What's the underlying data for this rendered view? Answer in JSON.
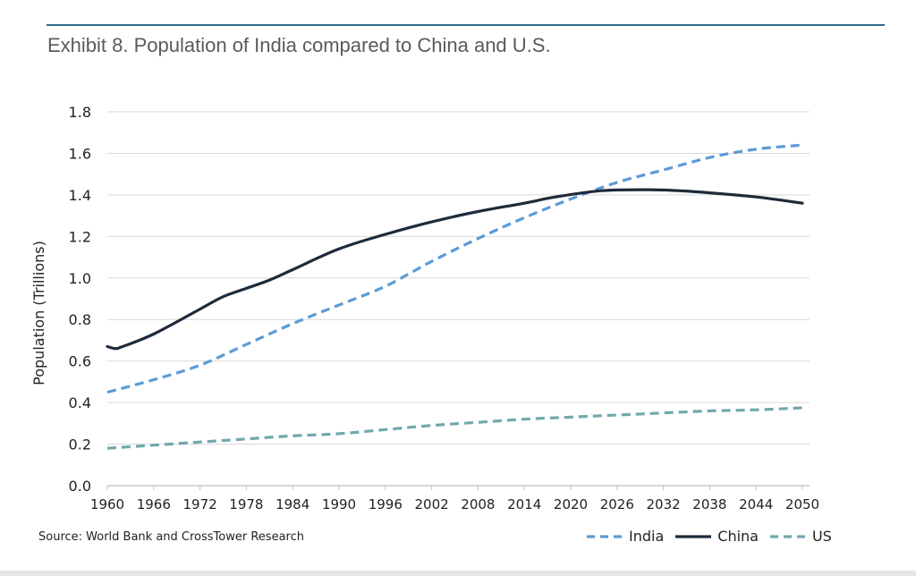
{
  "title": "Exhibit 8. Population of India compared to China and U.S.",
  "source": "Source: World Bank and CrossTower Research",
  "chart_data": {
    "type": "line",
    "title": "Exhibit 8. Population of India compared to China and U.S.",
    "xlabel": "",
    "ylabel": "Population (Trillions)",
    "ylim": [
      0,
      1.8
    ],
    "yticks": [
      "0.0",
      "0.2",
      "0.4",
      "0.6",
      "0.8",
      "1.0",
      "1.2",
      "1.4",
      "1.6",
      "1.8"
    ],
    "xlim": [
      1960,
      2050
    ],
    "xticks": [
      "1960",
      "1966",
      "1972",
      "1978",
      "1984",
      "1990",
      "1996",
      "2002",
      "2008",
      "2014",
      "2020",
      "2026",
      "2032",
      "2038",
      "2044",
      "2050"
    ],
    "grid": true,
    "legend_position": "bottom-right",
    "series": [
      {
        "name": "India",
        "color": "#5b9bd5",
        "style": "dashed",
        "x": [
          1960,
          1966,
          1972,
          1978,
          1984,
          1990,
          1996,
          2002,
          2008,
          2014,
          2020,
          2026,
          2032,
          2038,
          2044,
          2050
        ],
        "values": [
          0.45,
          0.51,
          0.58,
          0.68,
          0.78,
          0.87,
          0.96,
          1.08,
          1.19,
          1.29,
          1.38,
          1.46,
          1.52,
          1.58,
          1.62,
          1.64
        ]
      },
      {
        "name": "China",
        "color": "#1d2b3a",
        "style": "solid",
        "x": [
          1960,
          1961,
          1962,
          1966,
          1972,
          1975,
          1978,
          1981,
          1984,
          1990,
          1996,
          2002,
          2008,
          2014,
          2018,
          2024,
          2030,
          2034,
          2038,
          2044,
          2050
        ],
        "values": [
          0.67,
          0.66,
          0.67,
          0.73,
          0.85,
          0.91,
          0.95,
          0.99,
          1.04,
          1.14,
          1.21,
          1.27,
          1.32,
          1.36,
          1.39,
          1.42,
          1.425,
          1.42,
          1.41,
          1.39,
          1.36
        ]
      },
      {
        "name": "US",
        "color": "#70a8ad",
        "style": "dashed",
        "x": [
          1960,
          1966,
          1972,
          1978,
          1984,
          1990,
          1996,
          2002,
          2008,
          2014,
          2020,
          2026,
          2032,
          2038,
          2044,
          2050
        ],
        "values": [
          0.18,
          0.195,
          0.21,
          0.225,
          0.24,
          0.25,
          0.27,
          0.29,
          0.305,
          0.32,
          0.33,
          0.34,
          0.35,
          0.36,
          0.365,
          0.375
        ]
      }
    ]
  }
}
